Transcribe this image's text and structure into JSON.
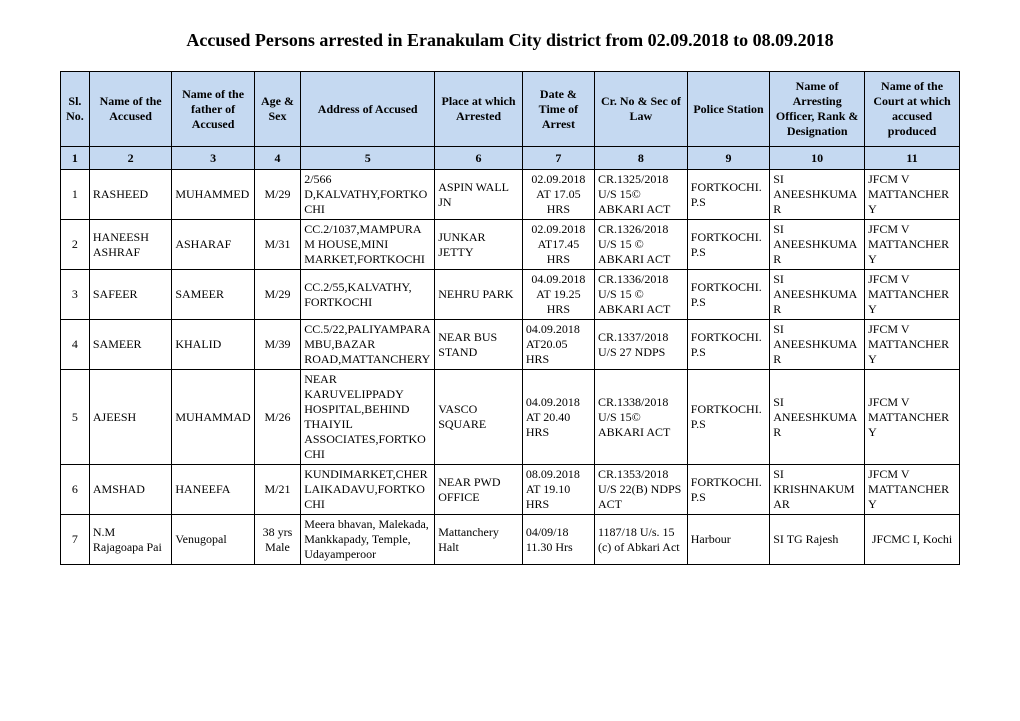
{
  "title": "Accused Persons arrested in   Eranakulam City   district from   02.09.2018 to 08.09.2018",
  "headers": [
    "Sl. No.",
    "Name of the Accused",
    "Name of the father of Accused",
    "Age & Sex",
    "Address of Accused",
    "Place at which Arrested",
    "Date & Time of Arrest",
    "Cr. No & Sec of Law",
    "Police Station",
    "Name of Arresting Officer, Rank & Designation",
    "Name of the Court at which accused produced"
  ],
  "numrow": [
    "1",
    "2",
    "3",
    "4",
    "5",
    "6",
    "7",
    "8",
    "9",
    "10",
    "11"
  ],
  "rows": [
    {
      "sl": "1",
      "name": "RASHEED",
      "father": "MUHAMMED",
      "agesex": "M/29",
      "address": "2/566 D,KALVATHY,FORTKOCHI",
      "place": "ASPIN WALL JN",
      "datetime": "02.09.2018 AT 17.05 HRS",
      "crno": "CR.1325/2018 U/S 15© ABKARI ACT",
      "station": "FORTKOCHI.P.S",
      "officer": "SI ANEESHKUMAR",
      "court": "JFCM V MATTANCHERY"
    },
    {
      "sl": "2",
      "name": "HANEESH ASHRAF",
      "father": "ASHARAF",
      "agesex": "M/31",
      "address": "CC.2/1037,MAMPURAM HOUSE,MINI MARKET,FORTKOCHI",
      "place": "JUNKAR JETTY",
      "datetime": "02.09.2018 AT17.45 HRS",
      "crno": "CR.1326/2018 U/S 15 © ABKARI ACT",
      "station": "FORTKOCHI.P.S",
      "officer": "SI ANEESHKUMAR",
      "court": "JFCM V MATTANCHERY"
    },
    {
      "sl": "3",
      "name": "SAFEER",
      "father": "SAMEER",
      "agesex": "M/29",
      "address": "CC.2/55,KALVATHY, FORTKOCHI",
      "place": "NEHRU PARK",
      "datetime": "04.09.2018 AT 19.25 HRS",
      "crno": "CR.1336/2018 U/S 15 © ABKARI ACT",
      "station": "FORTKOCHI.P.S",
      "officer": "SI ANEESHKUMAR",
      "court": "JFCM V MATTANCHERY"
    },
    {
      "sl": "4",
      "name": "SAMEER",
      "father": "KHALID",
      "agesex": "M/39",
      "address": "CC.5/22,PALIYAMPARAMBU,BAZAR ROAD,MATTANCHERY",
      "place": "NEAR BUS STAND",
      "datetime": "04.09.2018 AT20.05 HRS",
      "crno": "CR.1337/2018 U/S 27 NDPS",
      "station": "FORTKOCHI.P.S",
      "officer": "SI ANEESHKUMAR",
      "court": "JFCM V MATTANCHERY"
    },
    {
      "sl": "5",
      "name": "AJEESH",
      "father": "MUHAMMAD",
      "agesex": "M/26",
      "address": "NEAR KARUVELIPPADY HOSPITAL,BEHIND THAIYIL ASSOCIATES,FORTKOCHI",
      "place": "VASCO SQUARE",
      "datetime": "04.09.2018 AT 20.40 HRS",
      "crno": "CR.1338/2018 U/S 15© ABKARI ACT",
      "station": "FORTKOCHI.P.S",
      "officer": "SI ANEESHKUMAR",
      "court": "JFCM V MATTANCHERY"
    },
    {
      "sl": "6",
      "name": "AMSHAD",
      "father": "HANEEFA",
      "agesex": "M/21",
      "address": "KUNDIMARKET,CHERLAIKADAVU,FORTKOCHI",
      "place": "NEAR PWD OFFICE",
      "datetime": "08.09.2018 AT 19.10 HRS",
      "crno": "CR.1353/2018 U/S 22(B) NDPS ACT",
      "station": "FORTKOCHI.P.S",
      "officer": "SI KRISHNAKUMAR",
      "court": "JFCM V MATTANCHERY"
    },
    {
      "sl": "7",
      "name": "N.M Rajagoapa Pai",
      "father": "Venugopal",
      "agesex": "38 yrs Male",
      "address": "Meera bhavan, Malekada, Mankkapady, Temple, Udayamperoor",
      "place": "Mattanchery Halt",
      "datetime": "04/09/18 11.30 Hrs",
      "crno": "1187/18 U/s. 15 (c) of Abkari Act",
      "station": "Harbour",
      "officer": "SI TG Rajesh",
      "court": "JFCMC I, Kochi"
    }
  ],
  "style": {
    "header_bg": "#c5d9f1",
    "border_color": "#000000",
    "font_family": "Times New Roman",
    "title_fontsize": 18,
    "cell_fontsize": 12
  }
}
